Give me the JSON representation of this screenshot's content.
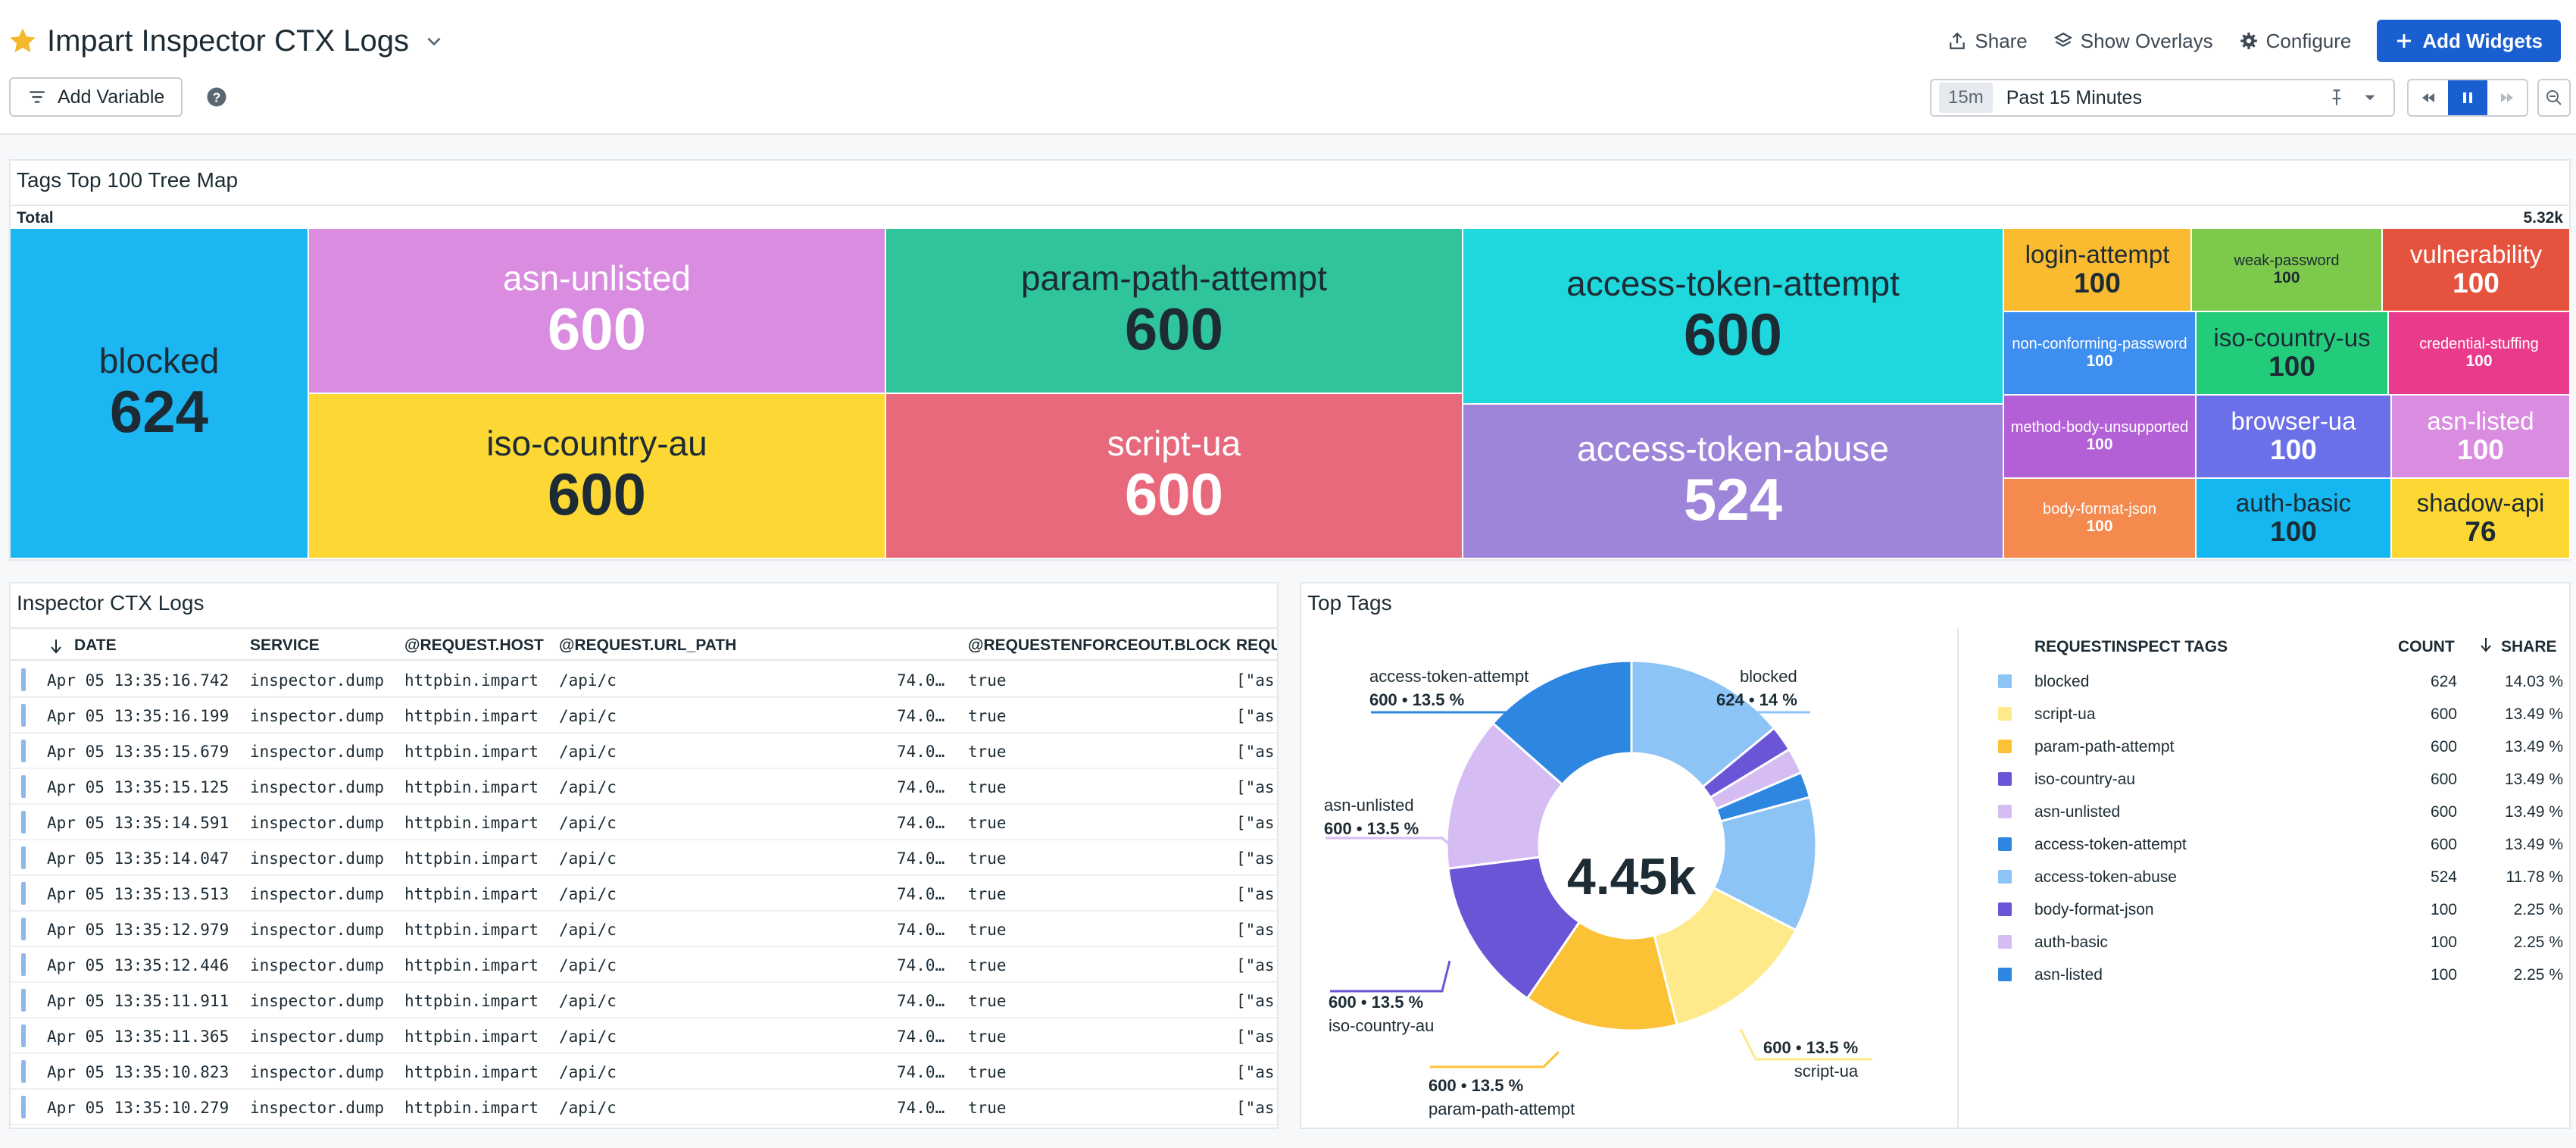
{
  "header": {
    "title": "Impart Inspector CTX Logs",
    "actions": {
      "share": "Share",
      "overlays": "Show Overlays",
      "configure": "Configure",
      "add_widgets": "Add Widgets"
    },
    "add_variable": "Add Variable",
    "time": {
      "badge": "15m",
      "label": "Past 15 Minutes"
    }
  },
  "treemap": {
    "title": "Tags Top 100 Tree Map",
    "total_label": "Total",
    "total_value": "5.32k",
    "tiles": [
      {
        "name": "blocked",
        "value": "624",
        "color": "#1cb6f2"
      },
      {
        "name": "asn-unlisted",
        "value": "600",
        "color": "#d98ce0"
      },
      {
        "name": "iso-country-au",
        "value": "600",
        "color": "#fdd835"
      },
      {
        "name": "param-path-attempt",
        "value": "600",
        "color": "#2fc49b"
      },
      {
        "name": "script-ua",
        "value": "600",
        "color": "#e8687c"
      },
      {
        "name": "access-token-attempt",
        "value": "600",
        "color": "#1fd8de"
      },
      {
        "name": "access-token-abuse",
        "value": "524",
        "color": "#9e85d9"
      },
      {
        "name": "login-attempt",
        "value": "100",
        "color": "#fbbb31"
      },
      {
        "name": "weak-password",
        "value": "100",
        "color": "#7dc94c"
      },
      {
        "name": "vulnerability",
        "value": "100",
        "color": "#e5533f"
      },
      {
        "name": "non-conforming-password",
        "value": "100",
        "color": "#3e8ef0"
      },
      {
        "name": "iso-country-us",
        "value": "100",
        "color": "#22cc7a"
      },
      {
        "name": "credential-stuffing",
        "value": "100",
        "color": "#e93a8c"
      },
      {
        "name": "method-body-unsupported",
        "value": "100",
        "color": "#b35fd6"
      },
      {
        "name": "browser-ua",
        "value": "100",
        "color": "#6b70e8"
      },
      {
        "name": "asn-listed",
        "value": "100",
        "color": "#d98ce0"
      },
      {
        "name": "body-format-json",
        "value": "100",
        "color": "#f48a4e"
      },
      {
        "name": "auth-basic",
        "value": "100",
        "color": "#14b7f0"
      },
      {
        "name": "shadow-api",
        "value": "76",
        "color": "#fdd835"
      }
    ]
  },
  "logs": {
    "title": "Inspector CTX Logs",
    "columns": [
      "DATE",
      "SERVICE",
      "@REQUEST.HOST",
      "@REQUEST.URL_PATH",
      "@REQUESTENFORCEOUT.BLOCK",
      "REQU"
    ],
    "rows": [
      {
        "date": "Apr 05 13:35:16.742",
        "service": "inspector.dump",
        "host": "httpbin.impart",
        "path": "/api/c",
        "ip": "74.0…",
        "block": "true",
        "tags": "[\"as"
      },
      {
        "date": "Apr 05 13:35:16.199",
        "service": "inspector.dump",
        "host": "httpbin.impart",
        "path": "/api/c",
        "ip": "74.0…",
        "block": "true",
        "tags": "[\"as"
      },
      {
        "date": "Apr 05 13:35:15.679",
        "service": "inspector.dump",
        "host": "httpbin.impart",
        "path": "/api/c",
        "ip": "74.0…",
        "block": "true",
        "tags": "[\"as"
      },
      {
        "date": "Apr 05 13:35:15.125",
        "service": "inspector.dump",
        "host": "httpbin.impart",
        "path": "/api/c",
        "ip": "74.0…",
        "block": "true",
        "tags": "[\"as"
      },
      {
        "date": "Apr 05 13:35:14.591",
        "service": "inspector.dump",
        "host": "httpbin.impart",
        "path": "/api/c",
        "ip": "74.0…",
        "block": "true",
        "tags": "[\"as"
      },
      {
        "date": "Apr 05 13:35:14.047",
        "service": "inspector.dump",
        "host": "httpbin.impart",
        "path": "/api/c",
        "ip": "74.0…",
        "block": "true",
        "tags": "[\"as"
      },
      {
        "date": "Apr 05 13:35:13.513",
        "service": "inspector.dump",
        "host": "httpbin.impart",
        "path": "/api/c",
        "ip": "74.0…",
        "block": "true",
        "tags": "[\"as"
      },
      {
        "date": "Apr 05 13:35:12.979",
        "service": "inspector.dump",
        "host": "httpbin.impart",
        "path": "/api/c",
        "ip": "74.0…",
        "block": "true",
        "tags": "[\"as"
      },
      {
        "date": "Apr 05 13:35:12.446",
        "service": "inspector.dump",
        "host": "httpbin.impart",
        "path": "/api/c",
        "ip": "74.0…",
        "block": "true",
        "tags": "[\"as"
      },
      {
        "date": "Apr 05 13:35:11.911",
        "service": "inspector.dump",
        "host": "httpbin.impart",
        "path": "/api/c",
        "ip": "74.0…",
        "block": "true",
        "tags": "[\"as"
      },
      {
        "date": "Apr 05 13:35:11.365",
        "service": "inspector.dump",
        "host": "httpbin.impart",
        "path": "/api/c",
        "ip": "74.0…",
        "block": "true",
        "tags": "[\"as"
      },
      {
        "date": "Apr 05 13:35:10.823",
        "service": "inspector.dump",
        "host": "httpbin.impart",
        "path": "/api/c",
        "ip": "74.0…",
        "block": "true",
        "tags": "[\"as"
      },
      {
        "date": "Apr 05 13:35:10.279",
        "service": "inspector.dump",
        "host": "httpbin.impart",
        "path": "/api/c",
        "ip": "74.0…",
        "block": "true",
        "tags": "[\"as"
      }
    ]
  },
  "top_tags": {
    "title": "Top Tags",
    "center_value": "4.45k",
    "columns": {
      "tags": "REQUESTINSPECT TAGS",
      "count": "COUNT",
      "share": "SHARE"
    },
    "donut_labels": [
      {
        "name": "access-token-attempt",
        "detail": "600 • 13.5 %"
      },
      {
        "name": "blocked",
        "detail": "624 • 14 %"
      },
      {
        "name": "asn-unlisted",
        "detail": "600 • 13.5 %"
      },
      {
        "name": "iso-country-au",
        "detail": "600 • 13.5 %"
      },
      {
        "name": "param-path-attempt",
        "detail": "600 • 13.5 %"
      },
      {
        "name": "script-ua",
        "detail": "600 • 13.5 %"
      }
    ]
  },
  "chart_data": {
    "type": "pie",
    "title": "Top Tags",
    "center_label": "4.45k",
    "categories": [
      "blocked",
      "script-ua",
      "param-path-attempt",
      "iso-country-au",
      "asn-unlisted",
      "access-token-attempt",
      "access-token-abuse",
      "body-format-json",
      "auth-basic",
      "asn-listed"
    ],
    "values": [
      624,
      600,
      600,
      600,
      600,
      600,
      524,
      100,
      100,
      100
    ],
    "shares": [
      "14.03 %",
      "13.49 %",
      "13.49 %",
      "13.49 %",
      "13.49 %",
      "13.49 %",
      "11.78 %",
      "2.25 %",
      "2.25 %",
      "2.25 %"
    ],
    "colors": [
      "#8cc4f6",
      "#feea8a",
      "#fcc236",
      "#6a55d7",
      "#d5bdf3",
      "#2d86df",
      "#8cc4f6",
      "#6a55d7",
      "#d5bdf3",
      "#2d86df"
    ]
  }
}
